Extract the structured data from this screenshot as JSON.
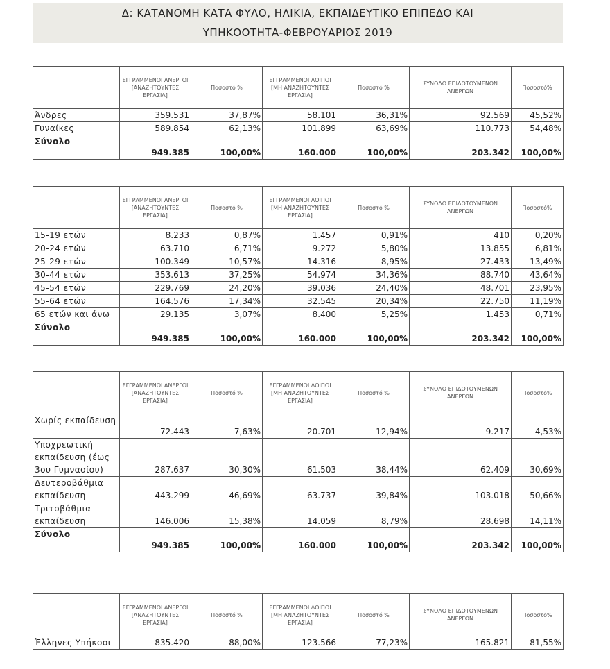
{
  "title": [
    "Δ: ΚΑΤΑΝΟΜΗ ΚΑΤΑ ΦΥΛΟ, ΗΛΙΚΙΑ, ΕΚΠΑΙΔΕΥΤΙΚΟ ΕΠΙΠΕΔΟ ΚΑΙ",
    "ΥΠΗΚΟΟΤΗΤΑ-ΦΕΒΡΟΥΑΡΙΟΣ 2019"
  ],
  "columns": [
    "ΕΓΓΡΑΜΜΕΝΟΙ ΑΝΕΡΓΟΙ [ΑΝΑΖΗΤΟΥΝΤΕΣ ΕΡΓΑΣΙΑ]",
    "Ποσοστό %",
    "ΕΓΓΡΑΜΜΕΝΟΙ ΛΟΙΠΟΙ [ΜΗ ΑΝΑΖΗΤΟΥΝΤΕΣ ΕΡΓΑΣΙΑ]",
    "Ποσοστό %",
    "ΣΥΝΟΛΟ ΕΠΙΔΟΤΟΥΜΕΝΩΝ ΑΝΕΡΓΩΝ",
    "Ποσοστό%"
  ],
  "tables": [
    {
      "rows": [
        [
          "Άνδρες",
          "359.531",
          "37,87%",
          "58.101",
          "36,31%",
          "92.569",
          "45,52%"
        ],
        [
          "Γυναίκες",
          "589.854",
          "62,13%",
          "101.899",
          "63,69%",
          "110.773",
          "54,48%"
        ],
        [
          "Σύνολο",
          "949.385",
          "100,00%",
          "160.000",
          "100,00%",
          "203.342",
          "100,00%"
        ]
      ]
    },
    {
      "rows": [
        [
          "15-19 ετών",
          "8.233",
          "0,87%",
          "1.457",
          "0,91%",
          "410",
          "0,20%"
        ],
        [
          "20-24 ετών",
          "63.710",
          "6,71%",
          "9.272",
          "5,80%",
          "13.855",
          "6,81%"
        ],
        [
          "25-29 ετών",
          "100.349",
          "10,57%",
          "14.316",
          "8,95%",
          "27.433",
          "13,49%"
        ],
        [
          "30-44 ετών",
          "353.613",
          "37,25%",
          "54.974",
          "34,36%",
          "88.740",
          "43,64%"
        ],
        [
          "45-54 ετών",
          "229.769",
          "24,20%",
          "39.036",
          "24,40%",
          "48.701",
          "23,95%"
        ],
        [
          "55-64 ετών",
          "164.576",
          "17,34%",
          "32.545",
          "20,34%",
          "22.750",
          "11,19%"
        ],
        [
          "65 ετών και άνω",
          "29.135",
          "3,07%",
          "8.400",
          "5,25%",
          "1.453",
          "0,71%"
        ],
        [
          "Σύνολο",
          "949.385",
          "100,00%",
          "160.000",
          "100,00%",
          "203.342",
          "100,00%"
        ]
      ]
    },
    {
      "rows": [
        [
          "Χωρίς εκπαίδευση",
          "72.443",
          "7,63%",
          "20.701",
          "12,94%",
          "9.217",
          "4,53%"
        ],
        [
          "Υποχρεωτική εκπαίδευση (έως 3ου Γυμνασίου)",
          "287.637",
          "30,30%",
          "61.503",
          "38,44%",
          "62.409",
          "30,69%"
        ],
        [
          "Δευτεροβάθμια εκπαίδευση",
          "443.299",
          "46,69%",
          "63.737",
          "39,84%",
          "103.018",
          "50,66%"
        ],
        [
          "Τριτοβάθμια εκπαίδευση",
          "146.006",
          "15,38%",
          "14.059",
          "8,79%",
          "28.698",
          "14,11%"
        ],
        [
          "Σύνολο",
          "949.385",
          "100,00%",
          "160.000",
          "100,00%",
          "203.342",
          "100,00%"
        ]
      ]
    },
    {
      "rows": [
        [
          "Έλληνες Υπήκοοι",
          "835.420",
          "88,00%",
          "123.566",
          "77,23%",
          "165.821",
          "81,55%"
        ]
      ]
    }
  ]
}
